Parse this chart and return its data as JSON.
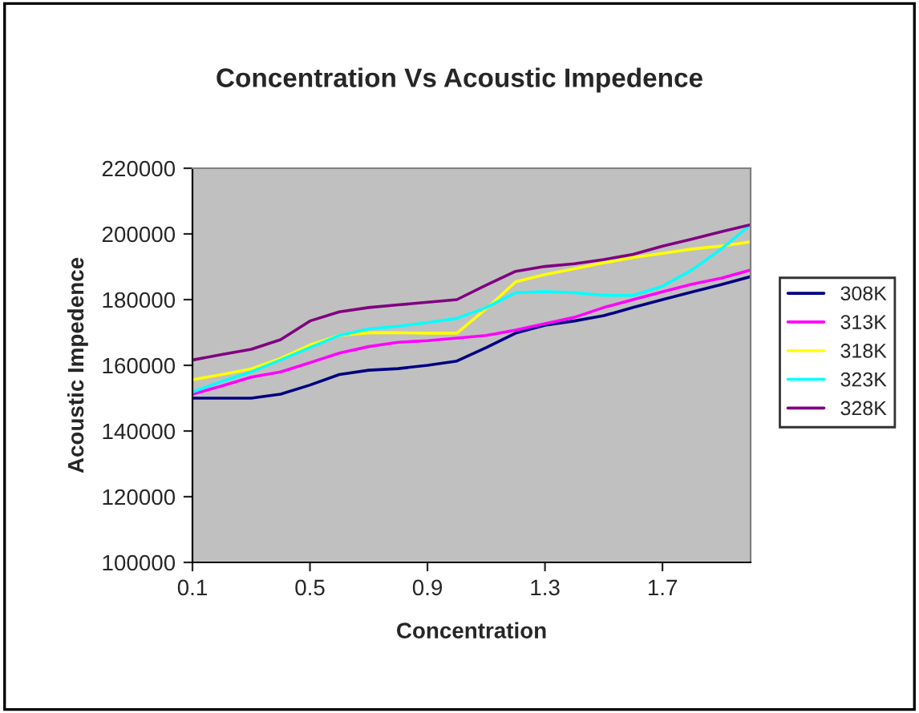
{
  "chart_data": {
    "type": "line",
    "title": "Concentration Vs Acoustic Impedence",
    "xlabel": "Concentration",
    "ylabel": "Acoustic Impedence",
    "categories": [
      "0.1",
      null,
      null,
      null,
      "0.5",
      null,
      null,
      null,
      "0.9",
      null,
      null,
      null,
      "1.3",
      null,
      null,
      null,
      "1.7",
      null,
      null,
      null
    ],
    "series": [
      {
        "name": "308K",
        "color": "#000080",
        "values": [
          150000,
          150000,
          150000,
          151200,
          154000,
          157200,
          158500,
          159000,
          160000,
          161300,
          165400,
          169800,
          172200,
          173500,
          175100,
          177600,
          180000,
          182300,
          184600,
          187000
        ]
      },
      {
        "name": "313K",
        "color": "#ff00ff",
        "values": [
          151200,
          153700,
          156400,
          158000,
          160800,
          163700,
          165700,
          167000,
          167500,
          168300,
          169100,
          170700,
          172700,
          174600,
          177600,
          180000,
          182400,
          184700,
          186500,
          189000
        ]
      },
      {
        "name": "318K",
        "color": "#ffff00",
        "values": [
          155600,
          157200,
          158900,
          162100,
          166200,
          169100,
          169900,
          169900,
          169800,
          169800,
          177200,
          185400,
          187600,
          189400,
          191200,
          192800,
          194100,
          195400,
          196300,
          197600
        ]
      },
      {
        "name": "323K",
        "color": "#00ffff",
        "values": [
          151900,
          155100,
          158000,
          161600,
          165400,
          169100,
          171100,
          171900,
          173000,
          174300,
          177600,
          182100,
          182400,
          182100,
          181300,
          181300,
          184100,
          189000,
          195400,
          202800
        ]
      },
      {
        "name": "328K",
        "color": "#800080",
        "values": [
          161600,
          163300,
          164900,
          167800,
          173500,
          176300,
          177600,
          178400,
          179200,
          180000,
          184400,
          188600,
          190100,
          190900,
          192200,
          193800,
          196300,
          198400,
          200700,
          202800
        ]
      }
    ],
    "ylim": [
      100000,
      220000
    ],
    "yticks": [
      100000,
      120000,
      140000,
      160000,
      180000,
      200000,
      220000
    ],
    "legend": "right",
    "grid": false,
    "marker": "none",
    "line_style": "solid"
  }
}
